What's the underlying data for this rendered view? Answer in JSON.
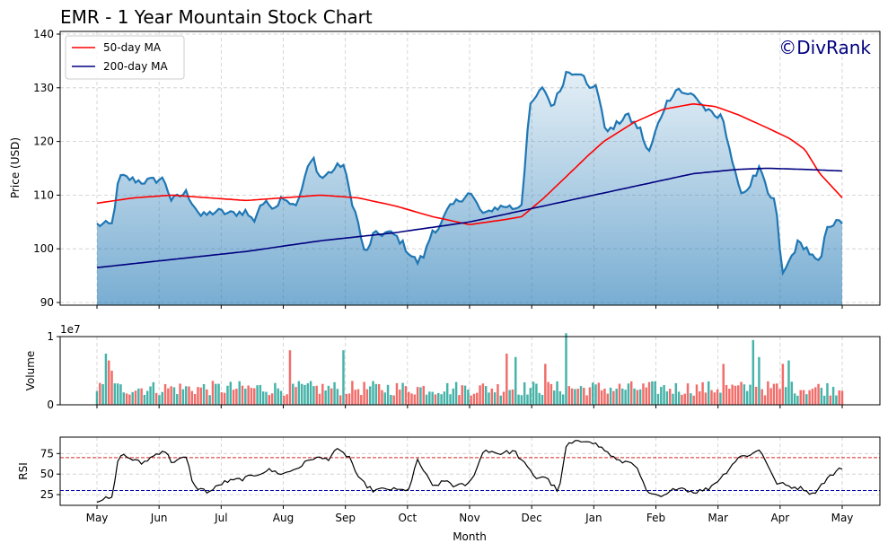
{
  "chart_data": {
    "type": "line",
    "title": "EMR - 1 Year Mountain Stock Chart",
    "watermark": "©DivRank",
    "watermark_color": "#000080",
    "xlabel": "Month",
    "month_ticks": [
      "May",
      "Jun",
      "Jul",
      "Aug",
      "Sep",
      "Oct",
      "Nov",
      "Dec",
      "Jan",
      "Feb",
      "Mar",
      "Apr",
      "May"
    ],
    "price_panel": {
      "ylabel": "Price (USD)",
      "ylim": [
        89.5,
        140.5
      ],
      "yticks": [
        90,
        100,
        110,
        120,
        130,
        140
      ],
      "grid": true,
      "legend_position": "top-left",
      "price_color": "#1f77b4",
      "ma50_color": "#ff0000",
      "ma200_color": "#000080",
      "legend": [
        {
          "label": "50-day MA",
          "color": "#ff0000"
        },
        {
          "label": "200-day MA",
          "color": "#000080"
        }
      ],
      "price_keypoints": [
        [
          0,
          104.5
        ],
        [
          0.02,
          104.5
        ],
        [
          0.03,
          113.5
        ],
        [
          0.06,
          112.5
        ],
        [
          0.09,
          113
        ],
        [
          0.1,
          109
        ],
        [
          0.12,
          110.5
        ],
        [
          0.14,
          106
        ],
        [
          0.16,
          107
        ],
        [
          0.18,
          106.5
        ],
        [
          0.2,
          107
        ],
        [
          0.21,
          105
        ],
        [
          0.22,
          108.5
        ],
        [
          0.24,
          108
        ],
        [
          0.25,
          110
        ],
        [
          0.26,
          108.5
        ],
        [
          0.27,
          108.5
        ],
        [
          0.28,
          114
        ],
        [
          0.29,
          117
        ],
        [
          0.3,
          113
        ],
        [
          0.32,
          115
        ],
        [
          0.33,
          116
        ],
        [
          0.34,
          110
        ],
        [
          0.35,
          105
        ],
        [
          0.36,
          98.5
        ],
        [
          0.37,
          102.5
        ],
        [
          0.39,
          103
        ],
        [
          0.4,
          102.5
        ],
        [
          0.41,
          101
        ],
        [
          0.42,
          99
        ],
        [
          0.43,
          97.5
        ],
        [
          0.44,
          99
        ],
        [
          0.45,
          103.5
        ],
        [
          0.46,
          104
        ],
        [
          0.47,
          107
        ],
        [
          0.48,
          108.5
        ],
        [
          0.5,
          110.5
        ],
        [
          0.52,
          106
        ],
        [
          0.53,
          107.5
        ],
        [
          0.55,
          108
        ],
        [
          0.56,
          107.5
        ],
        [
          0.57,
          108.5
        ],
        [
          0.58,
          126
        ],
        [
          0.59,
          128.5
        ],
        [
          0.6,
          130
        ],
        [
          0.61,
          126.5
        ],
        [
          0.62,
          129
        ],
        [
          0.63,
          133
        ],
        [
          0.65,
          133
        ],
        [
          0.66,
          129.5
        ],
        [
          0.67,
          131
        ],
        [
          0.68,
          123
        ],
        [
          0.69,
          122
        ],
        [
          0.7,
          123.5
        ],
        [
          0.71,
          125
        ],
        [
          0.73,
          122
        ],
        [
          0.74,
          117.5
        ],
        [
          0.75,
          122
        ],
        [
          0.76,
          126
        ],
        [
          0.77,
          128.5
        ],
        [
          0.78,
          130
        ],
        [
          0.79,
          128.5
        ],
        [
          0.8,
          129
        ],
        [
          0.81,
          127
        ],
        [
          0.82,
          125.5
        ],
        [
          0.83,
          124.5
        ],
        [
          0.84,
          124.5
        ],
        [
          0.85,
          118
        ],
        [
          0.86,
          111.5
        ],
        [
          0.87,
          110.5
        ],
        [
          0.88,
          113
        ],
        [
          0.89,
          115
        ],
        [
          0.9,
          110
        ],
        [
          0.91,
          109
        ],
        [
          0.92,
          95
        ],
        [
          0.93,
          98
        ],
        [
          0.94,
          101
        ],
        [
          0.95,
          100.5
        ],
        [
          0.96,
          98.5
        ],
        [
          0.97,
          97
        ],
        [
          0.98,
          104.5
        ],
        [
          1.0,
          105
        ]
      ],
      "ma50_keypoints": [
        [
          0,
          108.5
        ],
        [
          0.05,
          109.5
        ],
        [
          0.1,
          110
        ],
        [
          0.15,
          109.5
        ],
        [
          0.2,
          109
        ],
        [
          0.25,
          109.5
        ],
        [
          0.3,
          110
        ],
        [
          0.35,
          109.5
        ],
        [
          0.4,
          108
        ],
        [
          0.45,
          106
        ],
        [
          0.5,
          104.5
        ],
        [
          0.55,
          105.5
        ],
        [
          0.57,
          106
        ],
        [
          0.6,
          109.5
        ],
        [
          0.63,
          113.5
        ],
        [
          0.66,
          117.5
        ],
        [
          0.68,
          120
        ],
        [
          0.72,
          123.5
        ],
        [
          0.76,
          126
        ],
        [
          0.8,
          127
        ],
        [
          0.83,
          126.5
        ],
        [
          0.86,
          125
        ],
        [
          0.9,
          122.5
        ],
        [
          0.93,
          120.5
        ],
        [
          0.95,
          118.5
        ],
        [
          0.97,
          114
        ],
        [
          1.0,
          109.5
        ]
      ],
      "ma200_keypoints": [
        [
          0,
          96.5
        ],
        [
          0.1,
          98
        ],
        [
          0.2,
          99.5
        ],
        [
          0.3,
          101.5
        ],
        [
          0.4,
          103
        ],
        [
          0.5,
          105
        ],
        [
          0.6,
          108
        ],
        [
          0.7,
          111
        ],
        [
          0.8,
          114
        ],
        [
          0.86,
          114.8
        ],
        [
          0.9,
          115
        ],
        [
          0.95,
          114.8
        ],
        [
          1.0,
          114.5
        ]
      ]
    },
    "volume_panel": {
      "ylabel": "Volume",
      "scale_label": "1e7",
      "ylim": [
        0,
        1.0
      ],
      "yticks": [
        0,
        1
      ],
      "up_color": "#26a69a",
      "down_color": "#ef5350",
      "bar_count": 252,
      "typical_value": 0.22,
      "peaks": [
        [
          0.01,
          0.6
        ],
        [
          0.012,
          0.75
        ],
        [
          0.015,
          0.65
        ],
        [
          0.02,
          0.5
        ],
        [
          0.26,
          0.8
        ],
        [
          0.33,
          0.8
        ],
        [
          0.55,
          0.75
        ],
        [
          0.56,
          0.7
        ],
        [
          0.6,
          0.6
        ],
        [
          0.63,
          1.05
        ],
        [
          0.84,
          0.6
        ],
        [
          0.88,
          0.95
        ],
        [
          0.89,
          0.7
        ],
        [
          0.92,
          0.6
        ],
        [
          0.93,
          0.65
        ]
      ]
    },
    "rsi_panel": {
      "ylabel": "RSI",
      "ylim": [
        12,
        95
      ],
      "yticks": [
        25,
        50,
        75
      ],
      "overbought": 70,
      "oversold": 30,
      "overbought_color": "#d62728",
      "oversold_color": "#0000aa",
      "line_color": "#000000",
      "keypoints": [
        [
          0,
          18
        ],
        [
          0.01,
          20
        ],
        [
          0.02,
          20
        ],
        [
          0.03,
          75
        ],
        [
          0.06,
          63
        ],
        [
          0.09,
          80
        ],
        [
          0.1,
          65
        ],
        [
          0.12,
          70
        ],
        [
          0.13,
          35
        ],
        [
          0.15,
          28
        ],
        [
          0.17,
          40
        ],
        [
          0.2,
          45
        ],
        [
          0.23,
          55
        ],
        [
          0.25,
          50
        ],
        [
          0.27,
          58
        ],
        [
          0.29,
          70
        ],
        [
          0.31,
          68
        ],
        [
          0.32,
          80
        ],
        [
          0.34,
          70
        ],
        [
          0.35,
          45
        ],
        [
          0.37,
          30
        ],
        [
          0.39,
          32
        ],
        [
          0.41,
          30
        ],
        [
          0.42,
          33
        ],
        [
          0.43,
          68
        ],
        [
          0.45,
          35
        ],
        [
          0.47,
          42
        ],
        [
          0.48,
          35
        ],
        [
          0.5,
          38
        ],
        [
          0.52,
          80
        ],
        [
          0.54,
          75
        ],
        [
          0.56,
          78
        ],
        [
          0.58,
          55
        ],
        [
          0.59,
          45
        ],
        [
          0.6,
          48
        ],
        [
          0.62,
          28
        ],
        [
          0.63,
          86
        ],
        [
          0.66,
          92
        ],
        [
          0.68,
          80
        ],
        [
          0.7,
          65
        ],
        [
          0.72,
          65
        ],
        [
          0.74,
          25
        ],
        [
          0.76,
          22
        ],
        [
          0.78,
          35
        ],
        [
          0.8,
          28
        ],
        [
          0.82,
          32
        ],
        [
          0.84,
          48
        ],
        [
          0.86,
          70
        ],
        [
          0.88,
          75
        ],
        [
          0.89,
          80
        ],
        [
          0.9,
          62
        ],
        [
          0.91,
          40
        ],
        [
          0.93,
          35
        ],
        [
          0.95,
          32
        ],
        [
          0.96,
          25
        ],
        [
          0.98,
          45
        ],
        [
          1.0,
          58
        ]
      ]
    }
  }
}
